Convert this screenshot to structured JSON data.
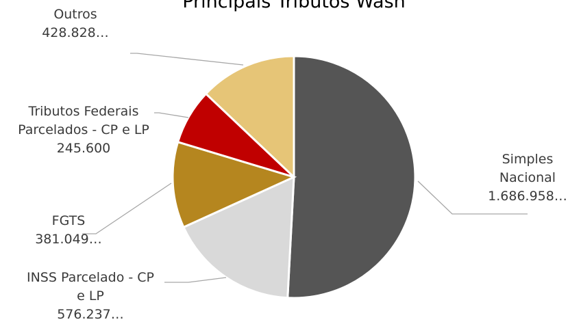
{
  "chart_data": {
    "type": "pie",
    "title": "Principais Tributos Wash",
    "start_angle_deg": 0,
    "direction": "clockwise",
    "slices": [
      {
        "lines": [
          "Simples",
          "Nacional",
          "1.686.958…"
        ],
        "value": 1686958,
        "color": "#555555"
      },
      {
        "lines": [
          "INSS Parcelado - CP",
          "e LP",
          "576.237…"
        ],
        "value": 576237,
        "color": "#d9d9d9"
      },
      {
        "lines": [
          "FGTS",
          "381.049…"
        ],
        "value": 381049,
        "color": "#b5861f"
      },
      {
        "lines": [
          "Tributos Federais",
          "Parcelados - CP e LP",
          "245.600"
        ],
        "value": 245600,
        "color": "#c00000"
      },
      {
        "lines": [
          "Outros",
          "428.828…"
        ],
        "value": 428828,
        "color": "#e6c577"
      }
    ],
    "leader_line_color": "#a6a6a6",
    "slice_border_color": "#ffffff"
  }
}
